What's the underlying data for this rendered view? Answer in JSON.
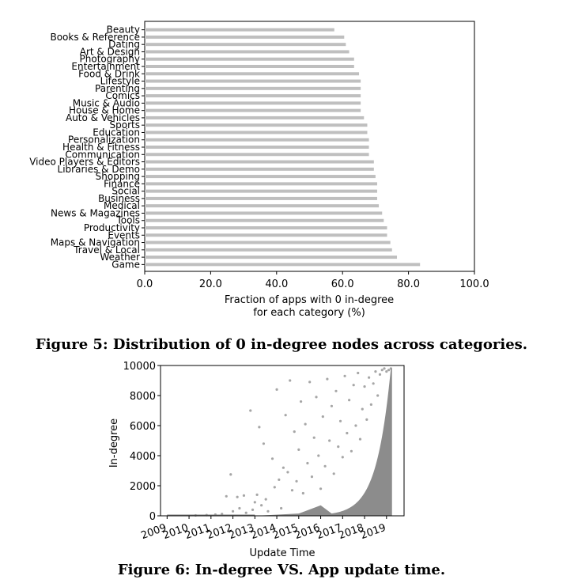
{
  "figure5": {
    "caption": "Figure 5: Distribution of 0 in-degree nodes across categories.",
    "chart_data": {
      "type": "bar",
      "orientation": "horizontal",
      "categories": [
        "Beauty",
        "Books & Reference",
        "Dating",
        "Art & Design",
        "Photography",
        "Entertainment",
        "Food & Drink",
        "Lifestyle",
        "Parenting",
        "Comics",
        "Music & Audio",
        "House & Home",
        "Auto & Vehicles",
        "Sports",
        "Education",
        "Personalization",
        "Health & Fitness",
        "Communication",
        "Video Players & Editors",
        "Libraries & Demo",
        "Shopping",
        "Finance",
        "Social",
        "Business",
        "Medical",
        "News & Magazines",
        "Tools",
        "Productivity",
        "Events",
        "Maps & Navigation",
        "Travel & Local",
        "Weather",
        "Game"
      ],
      "values": [
        57.5,
        60.5,
        61.0,
        62.0,
        63.5,
        63.5,
        65.0,
        65.5,
        65.5,
        65.5,
        65.5,
        65.5,
        66.5,
        67.5,
        67.5,
        68.0,
        68.0,
        68.0,
        69.5,
        69.5,
        70.0,
        70.5,
        70.5,
        70.5,
        71.0,
        72.0,
        72.5,
        73.5,
        73.5,
        74.5,
        75.0,
        76.5,
        83.5
      ],
      "xlabel_line1": "Fraction of apps with 0 in-degree",
      "xlabel_line2": "for each category (%)",
      "xlim": [
        0,
        100
      ],
      "xticks": [
        "0.0",
        "20.0",
        "40.0",
        "60.0",
        "80.0",
        "100.0"
      ],
      "bar_color": "#bfbfbf"
    }
  },
  "figure6": {
    "caption": "Figure 6: In-degree VS. App update time.",
    "chart_data": {
      "type": "scatter",
      "xlabel": "Update Time",
      "ylabel": "In-degree",
      "xlim": [
        2008.7,
        2019.8
      ],
      "ylim": [
        0,
        10000
      ],
      "xticks": [
        "2009",
        "2010",
        "2011",
        "2012",
        "2013",
        "2014",
        "2015",
        "2016",
        "2017",
        "2018",
        "2019"
      ],
      "yticks": [
        "0",
        "2000",
        "4000",
        "6000",
        "8000",
        "10000"
      ],
      "point_color": "#808080",
      "points": [
        [
          2010.3,
          30
        ],
        [
          2010.8,
          50
        ],
        [
          2011.2,
          80
        ],
        [
          2011.5,
          120
        ],
        [
          2011.7,
          1300
        ],
        [
          2011.9,
          2750
        ],
        [
          2012.0,
          300
        ],
        [
          2012.2,
          1250
        ],
        [
          2012.3,
          500
        ],
        [
          2012.5,
          1350
        ],
        [
          2012.6,
          200
        ],
        [
          2012.8,
          7000
        ],
        [
          2012.9,
          400
        ],
        [
          2013.0,
          900
        ],
        [
          2013.1,
          1400
        ],
        [
          2013.2,
          5900
        ],
        [
          2013.3,
          700
        ],
        [
          2013.4,
          4800
        ],
        [
          2013.5,
          1100
        ],
        [
          2013.6,
          300
        ],
        [
          2013.8,
          3800
        ],
        [
          2013.9,
          1900
        ],
        [
          2014.0,
          8400
        ],
        [
          2014.1,
          2400
        ],
        [
          2014.2,
          500
        ],
        [
          2014.3,
          3200
        ],
        [
          2014.4,
          6700
        ],
        [
          2014.5,
          2900
        ],
        [
          2014.6,
          9000
        ],
        [
          2014.7,
          1700
        ],
        [
          2014.8,
          5600
        ],
        [
          2014.9,
          2300
        ],
        [
          2015.0,
          4400
        ],
        [
          2015.1,
          7600
        ],
        [
          2015.2,
          1500
        ],
        [
          2015.3,
          6100
        ],
        [
          2015.4,
          3500
        ],
        [
          2015.5,
          8900
        ],
        [
          2015.6,
          2600
        ],
        [
          2015.7,
          5200
        ],
        [
          2015.8,
          7900
        ],
        [
          2015.9,
          4000
        ],
        [
          2016.0,
          1800
        ],
        [
          2016.1,
          6600
        ],
        [
          2016.2,
          3300
        ],
        [
          2016.3,
          9100
        ],
        [
          2016.4,
          5000
        ],
        [
          2016.5,
          7300
        ],
        [
          2016.6,
          2800
        ],
        [
          2016.7,
          8300
        ],
        [
          2016.8,
          4600
        ],
        [
          2016.9,
          6300
        ],
        [
          2017.0,
          3900
        ],
        [
          2017.1,
          9300
        ],
        [
          2017.2,
          5500
        ],
        [
          2017.3,
          7700
        ],
        [
          2017.4,
          4300
        ],
        [
          2017.5,
          8700
        ],
        [
          2017.6,
          6000
        ],
        [
          2017.7,
          9500
        ],
        [
          2017.8,
          5100
        ],
        [
          2017.9,
          7100
        ],
        [
          2018.0,
          8600
        ],
        [
          2018.1,
          6400
        ],
        [
          2018.2,
          9200
        ],
        [
          2018.3,
          7400
        ],
        [
          2018.4,
          8800
        ],
        [
          2018.5,
          9600
        ],
        [
          2018.6,
          8000
        ],
        [
          2018.7,
          9400
        ],
        [
          2018.8,
          9700
        ],
        [
          2018.9,
          9800
        ],
        [
          2019.0,
          9600
        ],
        [
          2019.1,
          9700
        ],
        [
          2019.2,
          9800
        ]
      ]
    }
  }
}
